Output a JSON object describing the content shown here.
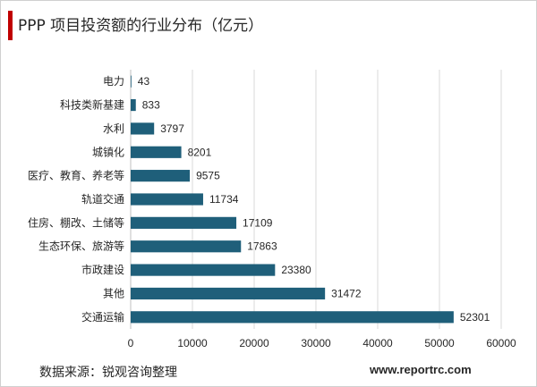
{
  "header": {
    "title": "PPP 项目投资额的行业分布（亿元）"
  },
  "footer": {
    "source": "数据来源：锐观咨询整理",
    "website": "www.reportrc.com"
  },
  "colors": {
    "bar": "#1f5f7a",
    "accent": "#c00000",
    "grid": "#d9d9d9"
  },
  "chart_data": {
    "type": "bar",
    "orientation": "horizontal",
    "title": "PPP 项目投资额的行业分布（亿元）",
    "xlabel": "",
    "ylabel": "",
    "xlim": [
      0,
      60000
    ],
    "xticks": [
      0,
      10000,
      20000,
      30000,
      40000,
      50000,
      60000
    ],
    "grid": true,
    "categories": [
      "电力",
      "科技类新基建",
      "水利",
      "城镇化",
      "医疗、教育、养老等",
      "轨道交通",
      "住房、棚改、土储等",
      "生态环保、旅游等",
      "市政建设",
      "其他",
      "交通运输"
    ],
    "values": [
      43,
      833,
      3797,
      8201,
      9575,
      11734,
      17109,
      17863,
      23380,
      31472,
      52301
    ]
  }
}
